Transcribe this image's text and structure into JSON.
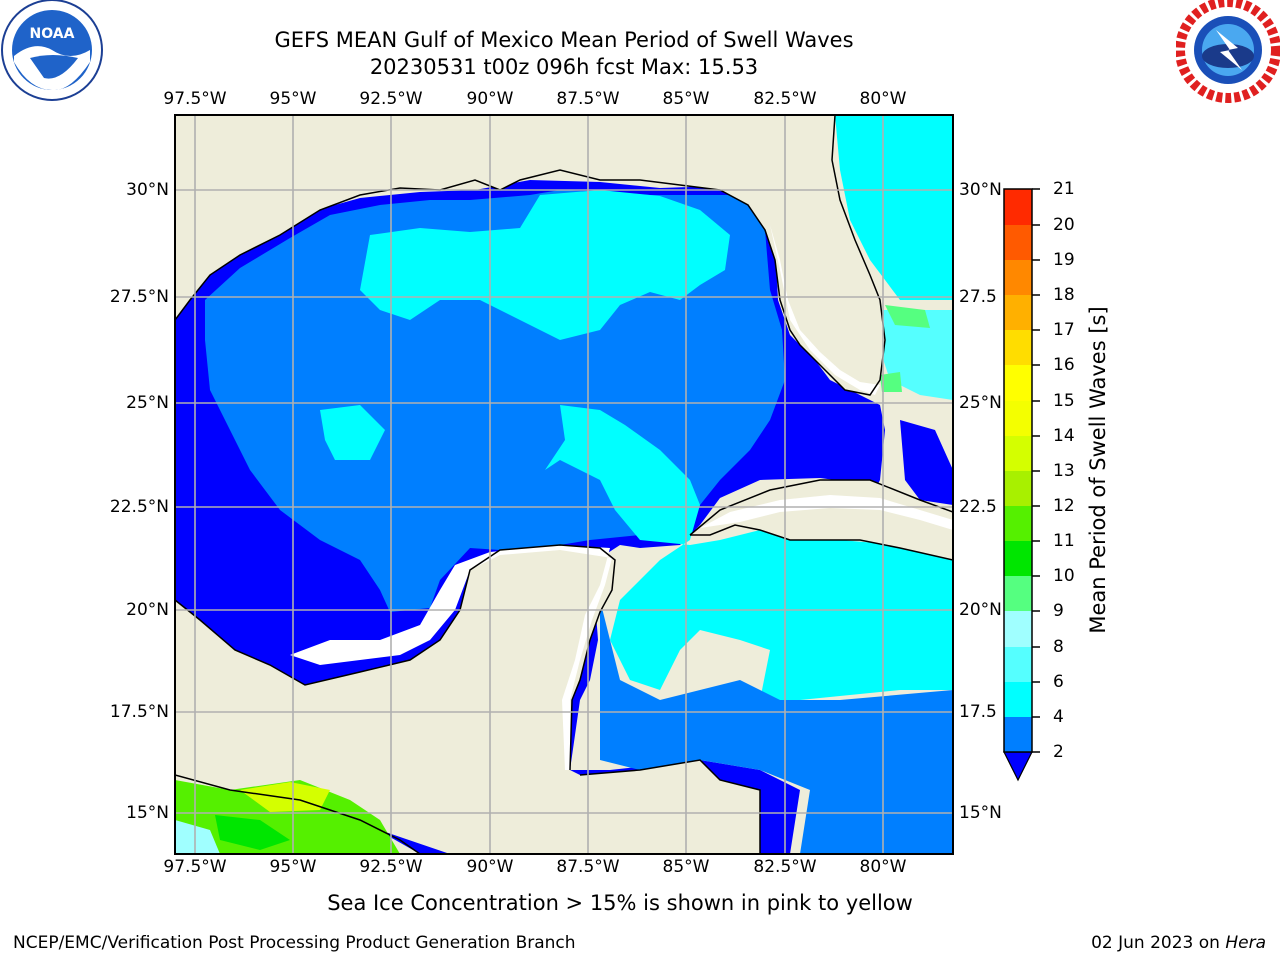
{
  "title": {
    "line1": "GEFS MEAN Gulf of Mexico Mean Period of Swell Waves",
    "line2": "20230531 t00z 096h fcst   Max: 15.53"
  },
  "logos": {
    "left": {
      "icon": "noaa-logo",
      "text": "NOAA",
      "ring_text": "NATIONAL OCEANIC AND ATMOSPHERIC ADMINISTRATION · U.S. DEPARTMENT OF COMMERCE"
    },
    "right": {
      "icon": "nws-logo",
      "ring_text": "NATIONAL WEATHER SERVICE"
    }
  },
  "map": {
    "lon_ticks": [
      "97.5°W",
      "95°W",
      "92.5°W",
      "90°W",
      "87.5°W",
      "85°W",
      "82.5°W",
      "80°W"
    ],
    "lat_ticks_left": [
      "30°N",
      "27.5°N",
      "25°N",
      "22.5°N",
      "20°N",
      "17.5°N",
      "15°N"
    ],
    "lat_ticks_right": [
      "30°N",
      "27.5",
      "25°N",
      "22.5",
      "20°N",
      "17.5",
      "15°N"
    ],
    "land_color": "#eeedda",
    "grid_color": "#b0b0b0"
  },
  "colorbar": {
    "label": "Mean Period of Swell Waves [s]",
    "ticks": [
      "2",
      "4",
      "6",
      "8",
      "9",
      "10",
      "11",
      "12",
      "13",
      "14",
      "15",
      "16",
      "17",
      "18",
      "19",
      "20",
      "21"
    ],
    "colors": [
      "#007fff",
      "#00ffff",
      "#55ffff",
      "#a0ffff",
      "#55ff80",
      "#00e600",
      "#55f000",
      "#a8f000",
      "#d4ff00",
      "#f4ff00",
      "#ffff00",
      "#ffdd00",
      "#ffb000",
      "#ff8800",
      "#ff5a00",
      "#ff2a00"
    ],
    "extend_color": "#0000ff"
  },
  "footer": {
    "note": "Sea Ice Concentration > 15% is shown in pink to yellow",
    "credit": "NCEP/EMC/Verification Post Processing Product Generation Branch",
    "date": "02 Jun 2023 on ",
    "host": "Hera"
  }
}
